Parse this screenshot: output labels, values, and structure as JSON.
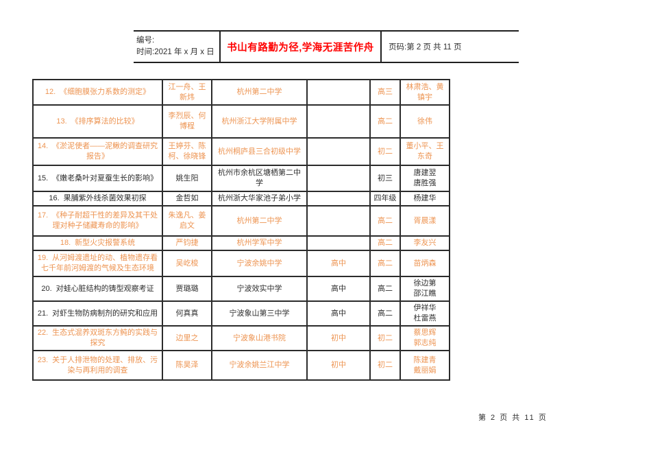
{
  "header": {
    "number_label": "编号:",
    "time_label": "时间:2021 年 x 月 x 日",
    "slogan": "书山有路勤为径,学海无涯苦作舟",
    "page_label": "页码:第 2 页  共 11 页"
  },
  "colors": {
    "highlight_orange": "#ed9452",
    "normal_text": "#2f2f2f",
    "slogan_red": "#ff0000"
  },
  "table": {
    "rows": [
      {
        "num": "12.",
        "title": "《细胞膜张力系数的测定》",
        "authors": "江一舟、王新炜",
        "school": "杭州第二中学",
        "level": "",
        "grade": "高三",
        "advisors": "林肃浩、黄镇宇",
        "highlighted": true
      },
      {
        "num": "13.",
        "title": "《排序算法的比较》",
        "authors": "李烈辰、何博程",
        "school": "杭州浙江大学附属中学",
        "level": "",
        "grade": "高二",
        "advisors": "徐伟",
        "highlighted": true
      },
      {
        "num": "14.",
        "title": "《淤泥使者——泥鳅的调查研究报告》",
        "authors": "王婷芬、陈柯、徐晓锋",
        "school": "杭州桐庐县三合初级中学",
        "level": "",
        "grade": "初二",
        "advisors": "董小平、王东奇",
        "highlighted": true
      },
      {
        "num": "15.",
        "title": "《嫩老桑叶对夏蚕生长的影响》",
        "authors": "姚生阳",
        "school": "杭州市余杭区塘栖第二中学",
        "level": "",
        "grade": "初三",
        "advisors": "唐建翌\n唐胜强",
        "highlighted": false
      },
      {
        "num": "16.",
        "title": "果脯紫外线杀菌效果初探",
        "authors": "金哲如",
        "school": "杭州浙大华家池子弟小学",
        "level": "",
        "grade": "四年级",
        "advisors": "杨建华",
        "highlighted": false
      },
      {
        "num": "17.",
        "title": "《种子耐超干性的差异及其干处理对种子储藏寿命的影响》",
        "authors": "朱逸凡、姜启文",
        "school": "杭州第二中学",
        "level": "",
        "grade": "高二",
        "advisors": "胥晨漾",
        "highlighted": true
      },
      {
        "num": "18.",
        "title": "新型火灾报警系统",
        "authors": "严钧捷",
        "school": "杭州学军中学",
        "level": "",
        "grade": "高二",
        "advisors": "李友兴",
        "highlighted": true
      },
      {
        "num": "19.",
        "title": "从河姆渡遗址的动、植物遗存看七千年前河姆渡的气候及生态环境",
        "authors": "吴屹梭",
        "school": "宁波余姚中学",
        "level": "高中",
        "grade": "高二",
        "advisors": "苗炳森",
        "highlighted": true
      },
      {
        "num": "20.",
        "title": "对蛙心脏结构的铸型观察考证",
        "authors": "贾璐璐",
        "school": "宁波效实中学",
        "level": "高中",
        "grade": "高二",
        "advisors": "徐边第\n邵江瞧",
        "highlighted": false
      },
      {
        "num": "21.",
        "title": "对虾生物防病制剂的研究和应用",
        "authors": "何真真",
        "school": "宁波象山第三中学",
        "level": "高中",
        "grade": "高二",
        "advisors": "伊祥华\n杜雷燕",
        "highlighted": false
      },
      {
        "num": "22.",
        "title": "生态式混养双斑东方鲀的实践与探究",
        "authors": "边里之",
        "school": "宁波象山港书院",
        "level": "初中",
        "grade": "初二",
        "advisors": "蔡思辉\n郭志纯",
        "highlighted": true
      },
      {
        "num": "23.",
        "title": "关于人排泄物的处理、排放、污染与再利用的调查",
        "authors": "陈昊泽",
        "school": "宁波余姚兰江中学",
        "level": "初中",
        "grade": "初二",
        "advisors": "陈建青\n戴丽娟",
        "highlighted": true
      }
    ]
  },
  "footer": {
    "page_info": "第 2 页 共 11 页"
  }
}
